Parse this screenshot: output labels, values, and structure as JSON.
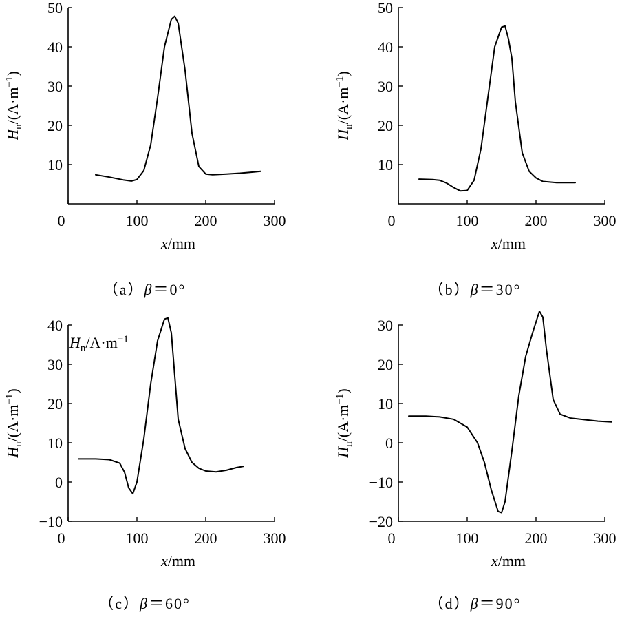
{
  "chart_data": [
    {
      "type": "line",
      "caption": "（a）β＝0°",
      "xlabel": "x/mm",
      "ylabel": "Hn/(A·m−1)",
      "xlim": [
        0,
        300
      ],
      "ylim": [
        0,
        50
      ],
      "xticks": [
        0,
        100,
        200,
        300
      ],
      "yticks": [
        10,
        20,
        30,
        40,
        50
      ],
      "inner_label": "",
      "x": [
        40,
        60,
        80,
        92,
        100,
        110,
        120,
        130,
        140,
        150,
        155,
        160,
        170,
        180,
        190,
        200,
        210,
        230,
        250,
        270,
        280
      ],
      "y": [
        7.4,
        6.8,
        6.1,
        5.8,
        6.2,
        8.5,
        15,
        27,
        40,
        47,
        47.8,
        46,
        34,
        18,
        9.5,
        7.6,
        7.4,
        7.6,
        7.8,
        8.1,
        8.3
      ]
    },
    {
      "type": "line",
      "caption": "（b）β＝30°",
      "xlabel": "x/mm",
      "ylabel": "Hn/(A·m−1)",
      "xlim": [
        0,
        300
      ],
      "ylim": [
        0,
        50
      ],
      "xticks": [
        0,
        100,
        200,
        300
      ],
      "yticks": [
        10,
        20,
        30,
        40,
        50
      ],
      "inner_label": "",
      "x": [
        30,
        50,
        60,
        70,
        80,
        90,
        100,
        110,
        120,
        130,
        140,
        150,
        155,
        160,
        165,
        170,
        180,
        190,
        200,
        210,
        230,
        257
      ],
      "y": [
        6.3,
        6.2,
        6.0,
        5.3,
        4.2,
        3.3,
        3.4,
        6.0,
        14,
        27,
        40,
        45,
        45.3,
        42,
        37,
        26,
        13,
        8.3,
        6.6,
        5.7,
        5.4,
        5.4
      ]
    },
    {
      "type": "line",
      "caption": "（c）β＝60°",
      "xlabel": "x/mm",
      "ylabel": "Hn/(A·m−1)",
      "xlim": [
        0,
        300
      ],
      "ylim": [
        -10,
        40
      ],
      "xticks": [
        0,
        100,
        200,
        300
      ],
      "yticks": [
        -10,
        0,
        10,
        20,
        30,
        40
      ],
      "inner_label": "Hn/A·m−1",
      "x": [
        15,
        40,
        60,
        75,
        82,
        88,
        94,
        100,
        110,
        120,
        130,
        140,
        145,
        150,
        160,
        170,
        180,
        190,
        200,
        215,
        230,
        245,
        255
      ],
      "y": [
        5.9,
        5.9,
        5.7,
        4.8,
        2.5,
        -1.5,
        -3.0,
        0,
        11,
        25,
        36,
        41.5,
        41.8,
        38,
        16,
        8.5,
        5.0,
        3.5,
        2.8,
        2.6,
        3.0,
        3.7,
        4.0
      ]
    },
    {
      "type": "line",
      "caption": "（d）β＝90°",
      "xlabel": "x/mm",
      "ylabel": "Hn/(A·m−1)",
      "xlim": [
        0,
        300
      ],
      "ylim": [
        -20,
        30
      ],
      "xticks": [
        0,
        100,
        200,
        300
      ],
      "yticks": [
        -20,
        -10,
        0,
        10,
        20,
        30
      ],
      "inner_label": "",
      "x": [
        15,
        40,
        60,
        80,
        100,
        115,
        125,
        135,
        145,
        150,
        155,
        165,
        175,
        185,
        195,
        205,
        210,
        215,
        225,
        235,
        250,
        270,
        290,
        310
      ],
      "y": [
        6.8,
        6.8,
        6.6,
        6.0,
        4.0,
        0,
        -5,
        -12,
        -17.5,
        -17.8,
        -15,
        -2,
        12,
        22,
        28,
        33.5,
        32,
        24,
        11,
        7.3,
        6.3,
        5.9,
        5.5,
        5.3
      ]
    }
  ]
}
